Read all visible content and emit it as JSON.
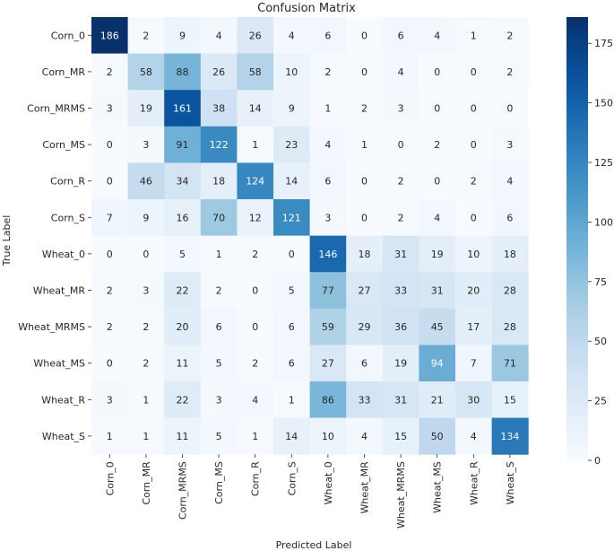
{
  "chart_data": {
    "type": "heatmap",
    "title": "Confusion Matrix",
    "xlabel": "Predicted Label",
    "ylabel": "True Label",
    "categories": [
      "Corn_0",
      "Corn_MR",
      "Corn_MRMS",
      "Corn_MS",
      "Corn_R",
      "Corn_S",
      "Wheat_0",
      "Wheat_MR",
      "Wheat_MRMS",
      "Wheat_MS",
      "Wheat_R",
      "Wheat_S"
    ],
    "matrix": [
      [
        186,
        2,
        9,
        4,
        26,
        4,
        6,
        0,
        6,
        4,
        1,
        2
      ],
      [
        2,
        58,
        88,
        26,
        58,
        10,
        2,
        0,
        4,
        0,
        0,
        2
      ],
      [
        3,
        19,
        161,
        38,
        14,
        9,
        1,
        2,
        3,
        0,
        0,
        0
      ],
      [
        0,
        3,
        91,
        122,
        1,
        23,
        4,
        1,
        0,
        2,
        0,
        3
      ],
      [
        0,
        46,
        34,
        18,
        124,
        14,
        6,
        0,
        2,
        0,
        2,
        4
      ],
      [
        7,
        9,
        16,
        70,
        12,
        121,
        3,
        0,
        2,
        4,
        0,
        6
      ],
      [
        0,
        0,
        5,
        1,
        2,
        0,
        146,
        18,
        31,
        19,
        10,
        18
      ],
      [
        2,
        3,
        22,
        2,
        0,
        5,
        77,
        27,
        33,
        31,
        20,
        28
      ],
      [
        2,
        2,
        20,
        6,
        0,
        6,
        59,
        29,
        36,
        45,
        17,
        28
      ],
      [
        0,
        2,
        11,
        5,
        2,
        6,
        27,
        6,
        19,
        94,
        7,
        71
      ],
      [
        3,
        1,
        22,
        3,
        4,
        1,
        86,
        33,
        31,
        21,
        30,
        15
      ],
      [
        1,
        1,
        11,
        5,
        1,
        14,
        10,
        4,
        15,
        50,
        4,
        134
      ]
    ],
    "colorbar": {
      "range": [
        0,
        186
      ],
      "ticks": [
        0,
        25,
        50,
        75,
        100,
        125,
        150,
        175
      ]
    },
    "colormap": "Blues",
    "colors": {
      "low": "#f7fbff",
      "high": "#08306b",
      "text_dark": "#262626",
      "text_light": "#ffffff"
    }
  }
}
